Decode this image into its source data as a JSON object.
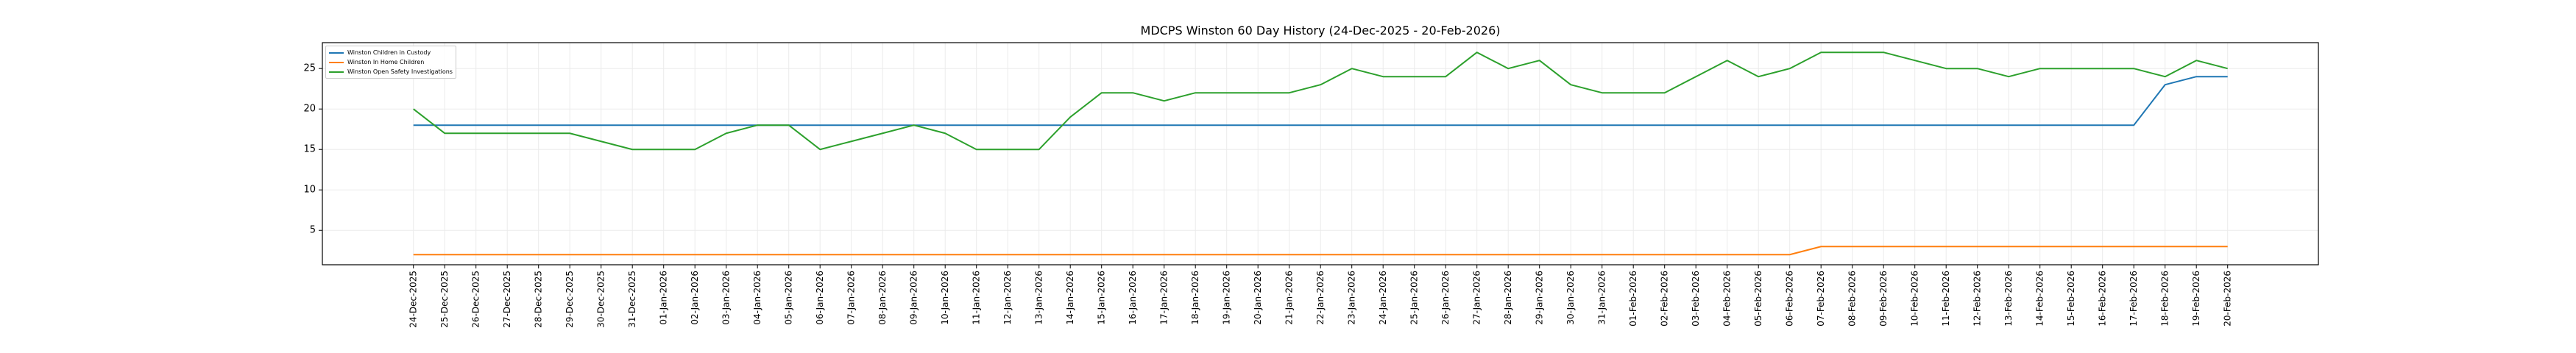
{
  "chart_data": {
    "type": "line",
    "title": "MDCPS Winston 60 Day History (24-Dec-2025 - 20-Feb-2026)",
    "xlabel": "",
    "ylabel": "",
    "ylim": [
      0.75,
      28.2
    ],
    "yticks": [
      5,
      10,
      15,
      20,
      25
    ],
    "grid": true,
    "legend_position": "top-left",
    "categories": [
      "24-Dec-2025",
      "25-Dec-2025",
      "26-Dec-2025",
      "27-Dec-2025",
      "28-Dec-2025",
      "29-Dec-2025",
      "30-Dec-2025",
      "31-Dec-2025",
      "01-Jan-2026",
      "02-Jan-2026",
      "03-Jan-2026",
      "04-Jan-2026",
      "05-Jan-2026",
      "06-Jan-2026",
      "07-Jan-2026",
      "08-Jan-2026",
      "09-Jan-2026",
      "10-Jan-2026",
      "11-Jan-2026",
      "12-Jan-2026",
      "13-Jan-2026",
      "14-Jan-2026",
      "15-Jan-2026",
      "16-Jan-2026",
      "17-Jan-2026",
      "18-Jan-2026",
      "19-Jan-2026",
      "20-Jan-2026",
      "21-Jan-2026",
      "22-Jan-2026",
      "23-Jan-2026",
      "24-Jan-2026",
      "25-Jan-2026",
      "26-Jan-2026",
      "27-Jan-2026",
      "28-Jan-2026",
      "29-Jan-2026",
      "30-Jan-2026",
      "31-Jan-2026",
      "01-Feb-2026",
      "02-Feb-2026",
      "03-Feb-2026",
      "04-Feb-2026",
      "05-Feb-2026",
      "06-Feb-2026",
      "07-Feb-2026",
      "08-Feb-2026",
      "09-Feb-2026",
      "10-Feb-2026",
      "11-Feb-2026",
      "12-Feb-2026",
      "13-Feb-2026",
      "14-Feb-2026",
      "15-Feb-2026",
      "16-Feb-2026",
      "17-Feb-2026",
      "18-Feb-2026",
      "19-Feb-2026",
      "20-Feb-2026"
    ],
    "series": [
      {
        "name": "Winston Children in Custody",
        "color": "#1f77b4",
        "values": [
          18,
          18,
          18,
          18,
          18,
          18,
          18,
          18,
          18,
          18,
          18,
          18,
          18,
          18,
          18,
          18,
          18,
          18,
          18,
          18,
          18,
          18,
          18,
          18,
          18,
          18,
          18,
          18,
          18,
          18,
          18,
          18,
          18,
          18,
          18,
          18,
          18,
          18,
          18,
          18,
          18,
          18,
          18,
          18,
          18,
          18,
          18,
          18,
          18,
          18,
          18,
          18,
          18,
          18,
          18,
          18,
          23,
          24,
          24
        ]
      },
      {
        "name": "Winston In Home Children",
        "color": "#ff7f0e",
        "values": [
          2,
          2,
          2,
          2,
          2,
          2,
          2,
          2,
          2,
          2,
          2,
          2,
          2,
          2,
          2,
          2,
          2,
          2,
          2,
          2,
          2,
          2,
          2,
          2,
          2,
          2,
          2,
          2,
          2,
          2,
          2,
          2,
          2,
          2,
          2,
          2,
          2,
          2,
          2,
          2,
          2,
          2,
          2,
          2,
          2,
          3,
          3,
          3,
          3,
          3,
          3,
          3,
          3,
          3,
          3,
          3,
          3,
          3,
          3
        ]
      },
      {
        "name": "Winston Open Safety Investigations",
        "color": "#2ca02c",
        "values": [
          20,
          17,
          17,
          17,
          17,
          17,
          16,
          15,
          15,
          15,
          17,
          18,
          18,
          15,
          16,
          17,
          18,
          17,
          15,
          15,
          15,
          19,
          22,
          22,
          21,
          22,
          22,
          22,
          22,
          23,
          25,
          24,
          24,
          24,
          27,
          25,
          26,
          23,
          22,
          22,
          22,
          24,
          26,
          24,
          25,
          27,
          27,
          27,
          26,
          25,
          25,
          24,
          25,
          25,
          25,
          25,
          24,
          26,
          25
        ]
      }
    ]
  }
}
